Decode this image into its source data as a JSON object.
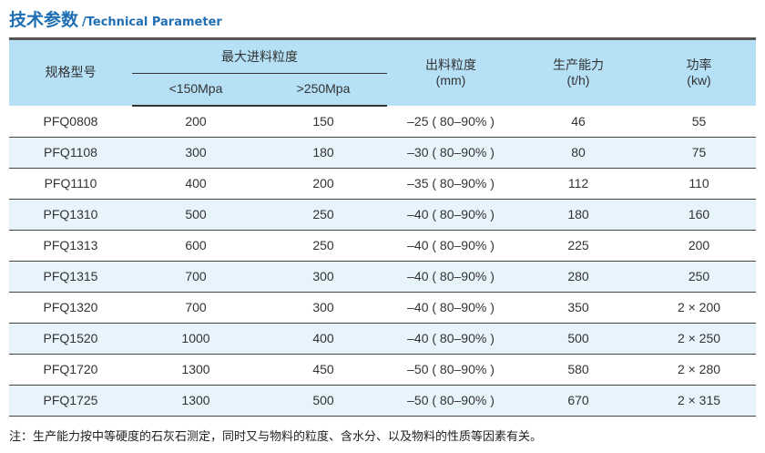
{
  "title": {
    "cn": "技术参数",
    "en": "/Technical Parameter"
  },
  "headers": {
    "model": "规格型号",
    "feed": "最大进料粒度",
    "feed_low": "<150Mpa",
    "feed_high": ">250Mpa",
    "output": "出料粒度",
    "output_unit": "(mm)",
    "capacity": "生产能力",
    "capacity_unit": "(t/h)",
    "power": "功率",
    "power_unit": "(kw)"
  },
  "rows": [
    [
      "PFQ0808",
      "200",
      "150",
      "–25 ( 80–90% )",
      "46",
      "55"
    ],
    [
      "PFQ1108",
      "300",
      "180",
      "–30 ( 80–90% )",
      "80",
      "75"
    ],
    [
      "PFQ1110",
      "400",
      "200",
      "–35 ( 80–90% )",
      "112",
      "110"
    ],
    [
      "PFQ1310",
      "500",
      "250",
      "–40 ( 80–90% )",
      "180",
      "160"
    ],
    [
      "PFQ1313",
      "600",
      "250",
      "–40 ( 80–90% )",
      "225",
      "200"
    ],
    [
      "PFQ1315",
      "700",
      "300",
      "–40 ( 80–90% )",
      "280",
      "250"
    ],
    [
      "PFQ1320",
      "700",
      "300",
      "–40 ( 80–90% )",
      "350",
      "2 × 200"
    ],
    [
      "PFQ1520",
      "1000",
      "400",
      "–40 ( 80–90% )",
      "500",
      "2 × 250"
    ],
    [
      "PFQ1720",
      "1300",
      "450",
      "–50 ( 80–90% )",
      "580",
      "2 × 280"
    ],
    [
      "PFQ1725",
      "1300",
      "500",
      "–50 ( 80–90% )",
      "670",
      "2 × 315"
    ]
  ],
  "note": "注：生产能力按中等硬度的石灰石测定，同时又与物料的粒度、含水分、以及物料的性质等因素有关。"
}
